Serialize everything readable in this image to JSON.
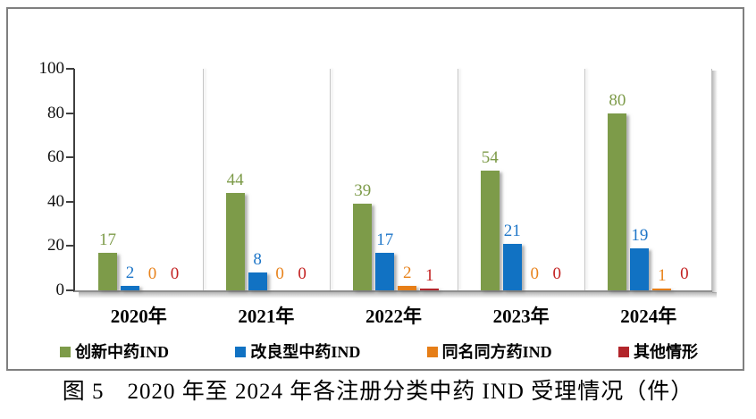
{
  "figure": {
    "caption": "图 5　2020 年至 2024 年各注册分类中药 IND 受理情况（件）"
  },
  "chart_data": {
    "type": "bar",
    "title": "",
    "categories": [
      "2020年",
      "2021年",
      "2022年",
      "2023年",
      "2024年"
    ],
    "series": [
      {
        "name": "创新中药IND",
        "color": "#7d9b49",
        "label_color": "#7d9b49",
        "values": [
          17,
          44,
          39,
          54,
          80
        ]
      },
      {
        "name": "改良型中药IND",
        "color": "#1172c3",
        "label_color": "#1e76c8",
        "values": [
          2,
          8,
          17,
          21,
          19
        ]
      },
      {
        "name": "同名同方药IND",
        "color": "#e67e17",
        "label_color": "#e8831c",
        "values": [
          0,
          0,
          2,
          0,
          1
        ]
      },
      {
        "name": "其他情形",
        "color": "#b2252b",
        "label_color": "#c32222",
        "values": [
          0,
          0,
          1,
          0,
          0
        ]
      }
    ],
    "xlabel": "",
    "ylabel": "",
    "ylim": [
      0,
      100
    ],
    "yticks": [
      0,
      20,
      40,
      60,
      80,
      100
    ],
    "legend_position": "bottom inside frame, horizontal row",
    "grid": "vertical category separator lines only, no horizontal gridlines",
    "value_labels": "numeric label above each bar, colored same as its series; zeros shown just above baseline",
    "style_notes": "white background, gray outer frame, bars and plot edges cast soft gray drop shadows"
  }
}
